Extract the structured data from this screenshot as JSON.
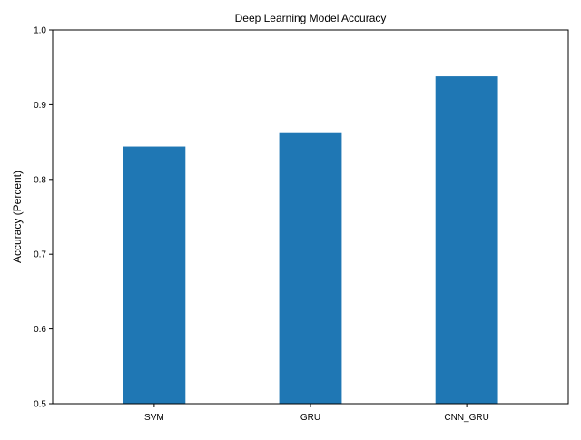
{
  "chart_data": {
    "type": "bar",
    "title": "Deep Learning Model Accuracy",
    "xlabel": "",
    "ylabel": "Accuracy (Percent)",
    "categories": [
      "SVM",
      "GRU",
      "CNN_GRU"
    ],
    "values": [
      0.844,
      0.862,
      0.938
    ],
    "ylim": [
      0.5,
      1.0
    ],
    "yticks": [
      0.5,
      0.6,
      0.7,
      0.8,
      0.9,
      1.0
    ],
    "ytick_labels": [
      "0.5",
      "0.6",
      "0.7",
      "0.8",
      "0.9",
      "1.0"
    ],
    "bar_color": "#1f77b4",
    "grid": false,
    "legend": "none"
  }
}
